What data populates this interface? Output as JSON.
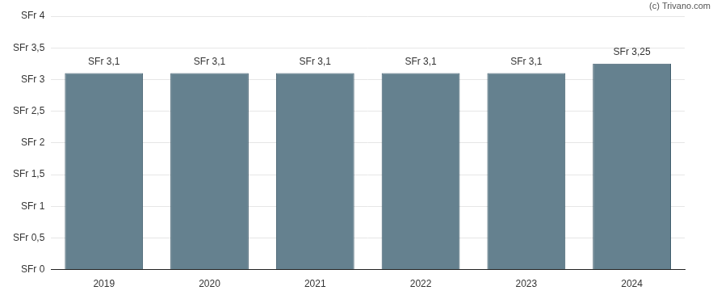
{
  "chart_data": {
    "type": "bar",
    "annotations": [
      "(c) Trivano.com"
    ],
    "categories": [
      "2019",
      "2020",
      "2021",
      "2022",
      "2023",
      "2024"
    ],
    "values": [
      3.1,
      3.1,
      3.1,
      3.1,
      3.1,
      3.25
    ],
    "value_labels": [
      "SFr 3,1",
      "SFr 3,1",
      "SFr 3,1",
      "SFr 3,1",
      "SFr 3,1",
      "SFr 3,25"
    ],
    "data_labels": true,
    "color": "#65818f",
    "ylim": [
      0,
      4
    ],
    "yticks": [
      {
        "value": 0,
        "label": "SFr 0"
      },
      {
        "value": 0.5,
        "label": "SFr 0,5"
      },
      {
        "value": 1,
        "label": "SFr 1"
      },
      {
        "value": 1.5,
        "label": "SFr 1,5"
      },
      {
        "value": 2,
        "label": "SFr 2"
      },
      {
        "value": 2.5,
        "label": "SFr 2,5"
      },
      {
        "value": 3,
        "label": "SFr 3"
      },
      {
        "value": 3.5,
        "label": "SFr 3,5"
      },
      {
        "value": 4,
        "label": "SFr 4"
      }
    ],
    "grid": true
  }
}
